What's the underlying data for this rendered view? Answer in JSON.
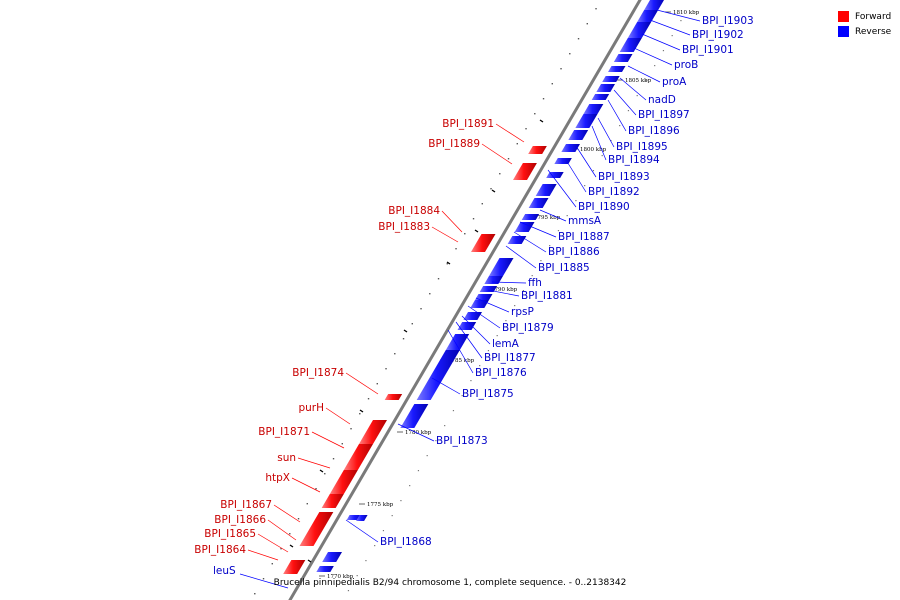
{
  "legend": {
    "forward_label": "Forward",
    "reverse_label": "Reverse",
    "forward_color": "#ff0000",
    "reverse_color": "#0000ff"
  },
  "caption": "Brucella pinnipedialis B2/94 chromosome 1, complete sequence. - 0..2138342",
  "ticks": [
    "1810 kbp",
    "1805 kbp",
    "1800 kbp",
    "1795 kbp",
    "1790 kbp",
    "1785 kbp",
    "1780 kbp",
    "1775 kbp",
    "1770 kbp"
  ],
  "reverse_genes": [
    "BPI_I1903",
    "BPI_I1902",
    "BPI_I1901",
    "proB",
    "proA",
    "nadD",
    "BPI_I1897",
    "BPI_I1896",
    "BPI_I1895",
    "BPI_I1894",
    "BPI_I1893",
    "BPI_I1892",
    "BPI_I1890",
    "mmsA",
    "BPI_I1887",
    "BPI_I1886",
    "BPI_I1885",
    "ffh",
    "BPI_I1881",
    "rpsP",
    "BPI_I1879",
    "lemA",
    "BPI_I1877",
    "BPI_I1876",
    "BPI_I1875",
    "BPI_I1873",
    "BPI_I1868",
    "leuS"
  ],
  "forward_genes": [
    "BPI_I1891",
    "BPI_I1889",
    "BPI_I1884",
    "BPI_I1883",
    "BPI_I1874",
    "purH",
    "BPI_I1871",
    "sun",
    "htpX",
    "BPI_I1867",
    "BPI_I1866",
    "BPI_I1865",
    "BPI_I1864"
  ]
}
